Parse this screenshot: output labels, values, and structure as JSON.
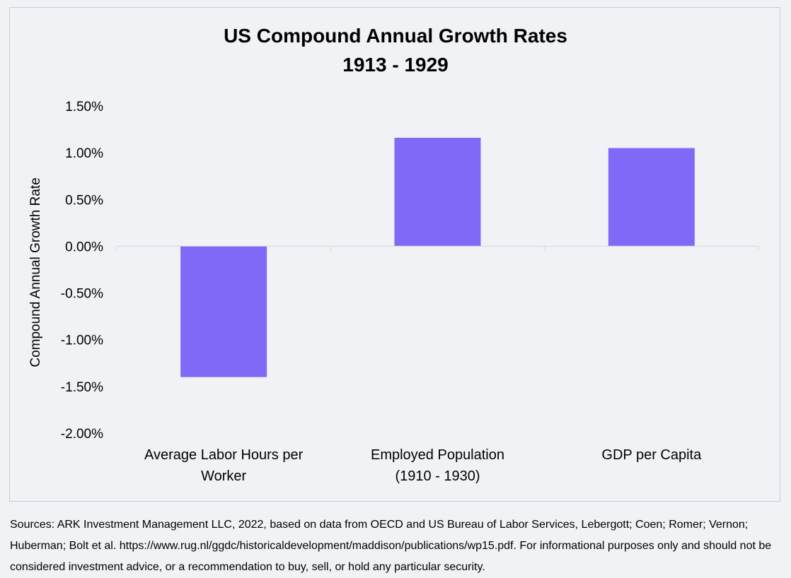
{
  "chart_data": {
    "type": "bar",
    "title": "US Compound Annual Growth Rates",
    "subtitle": "1913 - 1929",
    "ylabel": "Compound Annual Growth Rate",
    "xlabel": "",
    "categories": [
      [
        "Average Labor Hours per",
        "Worker"
      ],
      [
        "Employed Population",
        "(1910 - 1930)"
      ],
      [
        "GDP per Capita"
      ]
    ],
    "values": [
      -1.4,
      1.16,
      1.05
    ],
    "ylim": [
      -2.0,
      1.5
    ],
    "yticks": [
      1.5,
      1.0,
      0.5,
      0.0,
      -0.5,
      -1.0,
      -1.5,
      -2.0
    ],
    "ytick_labels": [
      "1.50%",
      "1.00%",
      "0.50%",
      "0.00%",
      "-0.50%",
      "-1.00%",
      "-1.50%",
      "-2.00%"
    ],
    "bar_color": "#7f69f6",
    "axis_color": "#d5d7dc",
    "grid": false
  },
  "footer": {
    "source_text": "Sources: ARK Investment Management LLC, 2022, based on data from OECD and US Bureau of Labor Services, Lebergott; Coen; Romer; Vernon; Huberman; Bolt et al. https://www.rug.nl/ggdc/historicaldevelopment/maddison/publications/wp15.pdf. For informational purposes only and should not be considered investment advice, or a recommendation to buy, sell, or hold any particular security."
  }
}
